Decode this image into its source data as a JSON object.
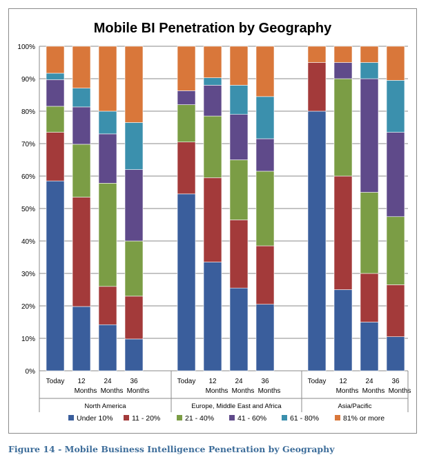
{
  "chart_data": {
    "type": "bar",
    "stacked": "percent",
    "title": "Mobile BI Penetration by Geography",
    "ylim": [
      0,
      100
    ],
    "yticks": [
      "0%",
      "10%",
      "20%",
      "30%",
      "40%",
      "50%",
      "60%",
      "70%",
      "80%",
      "90%",
      "100%"
    ],
    "grid": true,
    "legend_position": "bottom",
    "groups": [
      {
        "name": "North America",
        "categories": [
          {
            "line1": "Today",
            "line2": ""
          },
          {
            "line1": "12",
            "line2": "Months"
          },
          {
            "line1": "24",
            "line2": "Months"
          },
          {
            "line1": "36",
            "line2": "Months"
          }
        ]
      },
      {
        "name": "Europe, Middle East and Africa",
        "categories": [
          {
            "line1": "Today",
            "line2": ""
          },
          {
            "line1": "12",
            "line2": "Months"
          },
          {
            "line1": "24",
            "line2": "Months"
          },
          {
            "line1": "36",
            "line2": "Months"
          }
        ]
      },
      {
        "name": "Asia/Pacific",
        "categories": [
          {
            "line1": "Today",
            "line2": ""
          },
          {
            "line1": "12",
            "line2": "Months"
          },
          {
            "line1": "24",
            "line2": "Months"
          },
          {
            "line1": "36",
            "line2": "Months"
          }
        ]
      }
    ],
    "series": [
      {
        "name": "Under 10%",
        "color": "#3a5e9c",
        "values": [
          58.5,
          19.8,
          14.2,
          9.8,
          54.5,
          33.5,
          25.5,
          20.5,
          80,
          25,
          15,
          10.5
        ]
      },
      {
        "name": "11 - 20%",
        "color": "#a33a3a",
        "values": [
          15,
          33.7,
          11.8,
          13.2,
          16,
          26,
          21,
          18,
          15,
          35,
          15,
          16
        ]
      },
      {
        "name": "21 - 40%",
        "color": "#7b9d45",
        "values": [
          8,
          16.3,
          31.8,
          17,
          11.5,
          19,
          18.5,
          23,
          0,
          30,
          25,
          21
        ]
      },
      {
        "name": "41 - 60%",
        "color": "#5f4a8a",
        "values": [
          8.2,
          11.5,
          15.2,
          22,
          4.3,
          9.5,
          14,
          10,
          0,
          5,
          35,
          26
        ]
      },
      {
        "name": "61 - 80%",
        "color": "#3b90ad",
        "values": [
          2,
          5.8,
          7,
          14.5,
          0,
          2.3,
          9,
          13,
          0,
          0,
          5,
          16
        ]
      },
      {
        "name": "81% or more",
        "color": "#d9773a",
        "values": [
          8.3,
          12.9,
          20,
          23.5,
          13.7,
          9.7,
          12,
          15.5,
          5,
          5,
          5,
          10.5
        ]
      }
    ]
  },
  "caption": "Figure 14 - Mobile Business Intelligence Penetration by Geography"
}
